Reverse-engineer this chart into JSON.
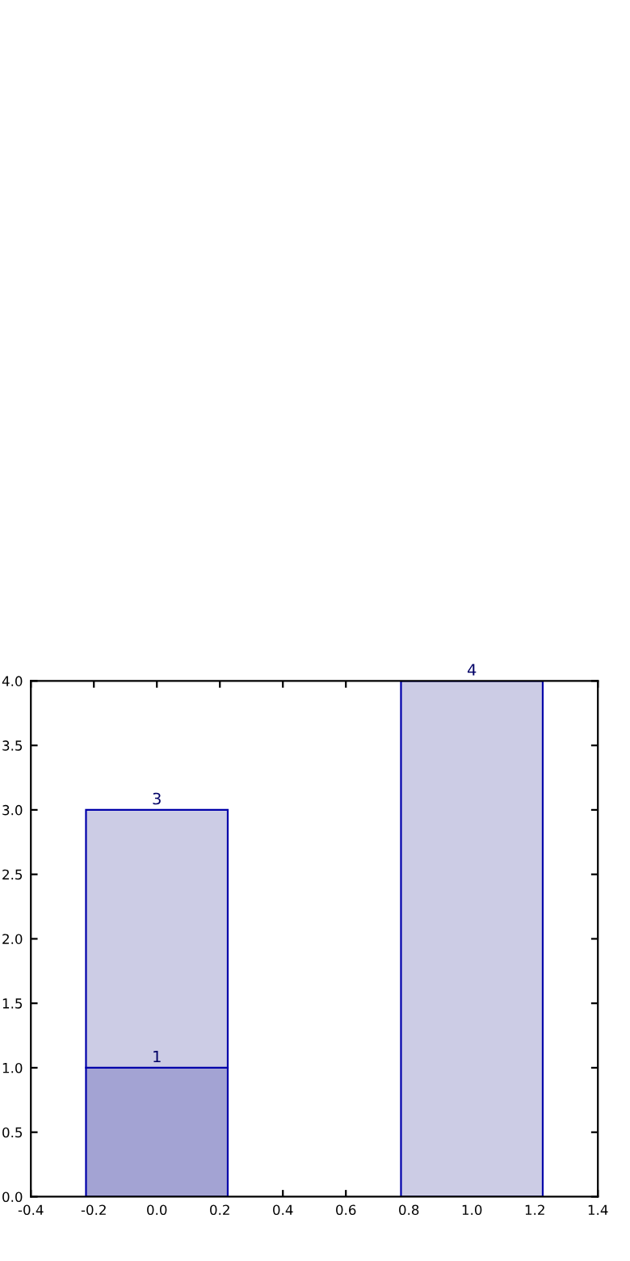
{
  "chart_data": {
    "type": "bar",
    "stacked": true,
    "x": [
      0,
      1
    ],
    "xlim": [
      -0.4,
      1.4
    ],
    "xticks": [
      -0.4,
      -0.2,
      {
        "value": 0,
        "label": "0.0"
      },
      0.2,
      0.4,
      0.6,
      0.8,
      {
        "value": 1,
        "label": "1.0"
      },
      1.2,
      1.4
    ],
    "ylim": [
      0,
      4
    ],
    "yticks": [
      {
        "value": 0,
        "label": "0.0"
      },
      0.5,
      {
        "value": 1,
        "label": "1.0"
      },
      1.5,
      {
        "value": 2,
        "label": "2.0"
      },
      2.5,
      {
        "value": 3,
        "label": "3.0"
      },
      3.5,
      {
        "value": 4,
        "label": "4.0"
      }
    ],
    "grid": false,
    "legend": false,
    "totals": [
      "3",
      "4"
    ],
    "series": [
      {
        "values": [
          1,
          null
        ],
        "color": "#a3a3d3",
        "value_labels": [
          "1",
          null
        ]
      },
      {
        "values": [
          2,
          4
        ],
        "color": "#ccccE5"
      }
    ]
  }
}
